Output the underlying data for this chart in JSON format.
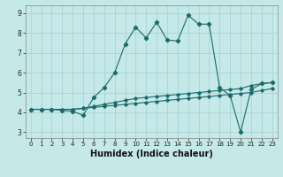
{
  "xlabel": "Humidex (Indice chaleur)",
  "bg_color": "#c5e8e8",
  "line_color": "#1a6b6b",
  "grid_color": "#aad4d4",
  "xlim": [
    -0.5,
    23.5
  ],
  "ylim": [
    2.7,
    9.4
  ],
  "xticks": [
    0,
    1,
    2,
    3,
    4,
    5,
    6,
    7,
    8,
    9,
    10,
    11,
    12,
    13,
    14,
    15,
    16,
    17,
    18,
    19,
    20,
    21,
    22,
    23
  ],
  "yticks": [
    3,
    4,
    5,
    6,
    7,
    8,
    9
  ],
  "line1_x": [
    0,
    1,
    2,
    3,
    4,
    5,
    6,
    7,
    8,
    9,
    10,
    11,
    12,
    13,
    14,
    15,
    16,
    17,
    18,
    19,
    20,
    21,
    22,
    23
  ],
  "line1_y": [
    4.15,
    4.15,
    4.15,
    4.1,
    4.05,
    3.85,
    4.75,
    5.25,
    6.0,
    7.45,
    8.3,
    7.75,
    8.55,
    7.65,
    7.6,
    8.9,
    8.45,
    8.45,
    5.25,
    4.85,
    3.0,
    5.15,
    5.45,
    5.5
  ],
  "line2_x": [
    0,
    1,
    2,
    3,
    4,
    5,
    6,
    7,
    8,
    9,
    10,
    11,
    12,
    13,
    14,
    15,
    16,
    17,
    18,
    19,
    20,
    21,
    22,
    23
  ],
  "line2_y": [
    4.15,
    4.15,
    4.15,
    4.15,
    4.15,
    4.2,
    4.25,
    4.3,
    4.35,
    4.4,
    4.45,
    4.5,
    4.55,
    4.6,
    4.65,
    4.7,
    4.75,
    4.8,
    4.85,
    4.9,
    4.95,
    5.0,
    5.1,
    5.2
  ],
  "line3_x": [
    0,
    1,
    2,
    3,
    4,
    5,
    6,
    7,
    8,
    9,
    10,
    11,
    12,
    13,
    14,
    15,
    16,
    17,
    18,
    19,
    20,
    21,
    22,
    23
  ],
  "line3_y": [
    4.15,
    4.15,
    4.15,
    4.15,
    4.15,
    4.2,
    4.3,
    4.4,
    4.5,
    4.6,
    4.7,
    4.75,
    4.8,
    4.85,
    4.9,
    4.95,
    5.0,
    5.05,
    5.1,
    5.15,
    5.2,
    5.35,
    5.45,
    5.5
  ]
}
